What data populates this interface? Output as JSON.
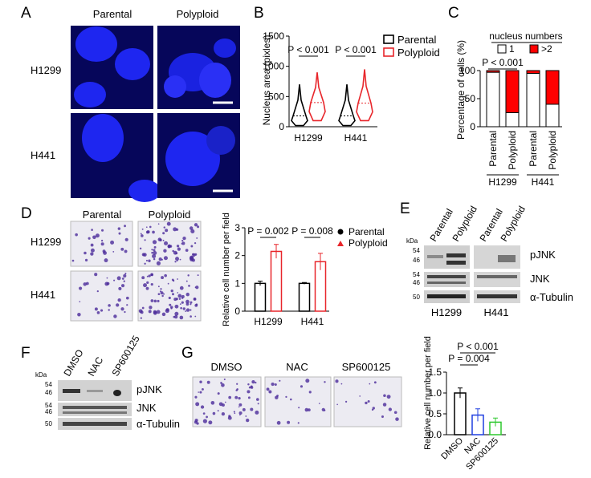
{
  "panels": {
    "a": {
      "letter": "A",
      "columns": [
        "Parental",
        "Polyploid"
      ],
      "rows": [
        "H1299",
        "H441"
      ]
    },
    "b": {
      "letter": "B"
    },
    "c": {
      "letter": "C"
    },
    "d": {
      "letter": "D",
      "columns": [
        "Parental",
        "Polyploid"
      ],
      "rows": [
        "H1299",
        "H441"
      ]
    },
    "e": {
      "letter": "E",
      "lanes": [
        "Parental",
        "Polyploid",
        "Parental",
        "Polyploid"
      ],
      "kda": "kDa",
      "markers": [
        "54",
        "46",
        "54",
        "46",
        "50"
      ],
      "proteins": [
        "pJNK",
        "JNK",
        "α-Tubulin"
      ],
      "cells": [
        "H1299",
        "H441"
      ]
    },
    "f": {
      "letter": "F",
      "lanes": [
        "DMSO",
        "NAC",
        "SP600125"
      ],
      "kda": "kDa",
      "markers": [
        "54",
        "46",
        "54",
        "46",
        "50"
      ],
      "proteins": [
        "pJNK",
        "JNK",
        "α-Tubulin"
      ]
    },
    "g": {
      "letter": "G",
      "columns": [
        "DMSO",
        "NAC",
        "SP600125"
      ]
    }
  },
  "chart_data": [
    {
      "type": "violin",
      "ylabel": "Nucleus area (pixles)",
      "categories": [
        "H1299",
        "H441"
      ],
      "series": [
        {
          "name": "Parental",
          "color": "#000000",
          "min": [
            20,
            20
          ],
          "median": [
            180,
            180
          ],
          "max": [
            700,
            700
          ]
        },
        {
          "name": "Polyploid",
          "color": "#e8262b",
          "min": [
            100,
            100
          ],
          "median": [
            400,
            390
          ],
          "max": [
            900,
            950
          ]
        }
      ],
      "ylim": [
        0,
        1500
      ],
      "yticks": [
        0,
        500,
        1000,
        1500
      ],
      "annotations": [
        "P < 0.001",
        "P < 0.001"
      ]
    },
    {
      "type": "stacked-bar",
      "ylabel": "Percentage of cells (%)",
      "legend_title": "nucleus numbers",
      "categories": [
        "Parental",
        "Polyploid",
        "Parental",
        "Polyploid"
      ],
      "groups": [
        "H1299",
        "H441"
      ],
      "series": [
        {
          "name": "1",
          "color": "#ffffff",
          "values": [
            97,
            25,
            95,
            40
          ]
        },
        {
          "name": ">2",
          "color": "#ff0000",
          "values": [
            3,
            75,
            5,
            60
          ]
        }
      ],
      "ylim": [
        0,
        100
      ],
      "yticks": [
        0,
        50,
        100
      ],
      "annotation": "P < 0.001"
    },
    {
      "type": "grouped-bar",
      "ylabel": "Relative cell number per field",
      "categories": [
        "H1299",
        "H441"
      ],
      "series": [
        {
          "name": "Parental",
          "color": "#000000",
          "values": [
            1.0,
            1.0
          ],
          "errors": [
            0.08,
            0.03
          ]
        },
        {
          "name": "Polyploid",
          "color": "#e8262b",
          "values": [
            2.15,
            1.78
          ],
          "errors": [
            0.25,
            0.3
          ]
        }
      ],
      "ylim": [
        0,
        3
      ],
      "yticks": [
        0,
        1,
        2,
        3
      ],
      "annotations": [
        "P = 0.002",
        "P = 0.008"
      ]
    },
    {
      "type": "bar",
      "ylabel": "Relative cell number per field",
      "categories": [
        "DMSO",
        "NAC",
        "SP600125"
      ],
      "colors": [
        "#000000",
        "#1f3fe0",
        "#2ec82e"
      ],
      "values": [
        1.0,
        0.47,
        0.3
      ],
      "errors": [
        0.12,
        0.15,
        0.1
      ],
      "ylim": [
        0,
        1.5
      ],
      "yticks": [
        {
          "value": 0,
          "label": "0.0"
        },
        {
          "value": 0.5,
          "label": "0.5"
        },
        {
          "value": 1,
          "label": "1.0"
        },
        {
          "value": 1.5,
          "label": "1.5"
        }
      ],
      "annotations": [
        "P < 0.001",
        "P = 0.004"
      ]
    }
  ]
}
